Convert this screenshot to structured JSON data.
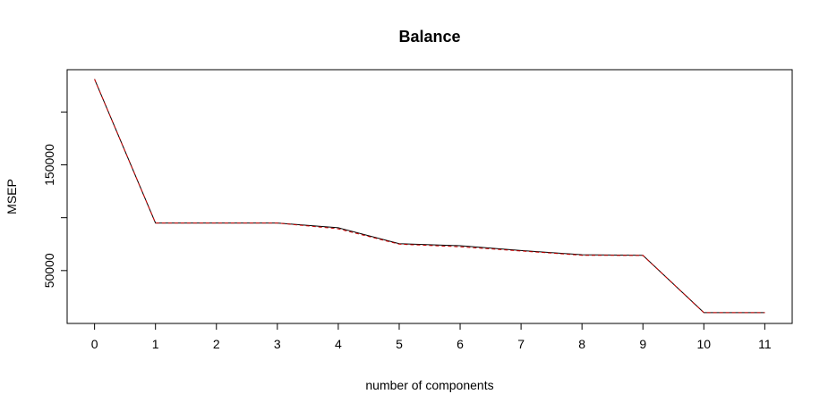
{
  "chart_data": {
    "type": "line",
    "title": "Balance",
    "xlabel": "number of components",
    "ylabel": "MSEP",
    "xlim": [
      -0.45,
      11.45
    ],
    "ylim": [
      0,
      240000
    ],
    "x_ticks": [
      0,
      1,
      2,
      3,
      4,
      5,
      6,
      7,
      8,
      9,
      10,
      11
    ],
    "y_ticks": [
      50000,
      100000,
      150000,
      200000
    ],
    "y_tick_labels": [
      "50000",
      "",
      "150000",
      ""
    ],
    "grid": false,
    "series": [
      {
        "color": "#000000",
        "dash": "solid",
        "x": [
          0,
          1,
          2,
          3,
          4,
          5,
          6,
          7,
          8,
          9,
          10,
          11
        ],
        "values": [
          231000,
          95000,
          95000,
          95000,
          90500,
          75500,
          73500,
          69000,
          65000,
          64500,
          10200,
          10200
        ]
      },
      {
        "color": "#cc0000",
        "dash": "dashed",
        "x": [
          0,
          1,
          2,
          3,
          4,
          5,
          6,
          7,
          8,
          9,
          10,
          11
        ],
        "values": [
          231000,
          95000,
          95000,
          95000,
          89500,
          75000,
          72500,
          68500,
          64500,
          64300,
          10200,
          10200
        ]
      }
    ]
  }
}
